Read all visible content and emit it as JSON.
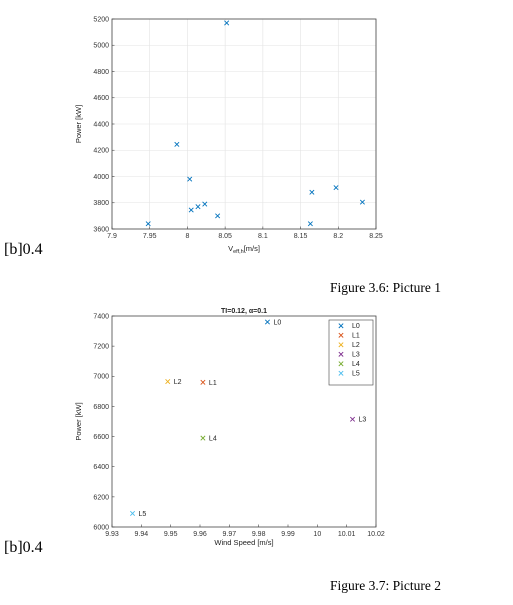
{
  "figure1": {
    "side_label": "[b]0.4",
    "caption": "Figure 3.6: Picture 1"
  },
  "figure2": {
    "side_label": "[b]0.4",
    "caption": "Figure 3.7: Picture 2"
  },
  "chart_data": [
    {
      "type": "scatter",
      "title": "",
      "xlabel_main": "V",
      "xlabel_sub": "eff,h",
      "xlabel_unit": "[m/s]",
      "ylabel": "Power [kW]",
      "xlim": [
        7.9,
        8.25
      ],
      "ylim": [
        3600,
        5200
      ],
      "xticks": [
        "7.9",
        "7.95",
        "8",
        "8.05",
        "8.1",
        "8.15",
        "8.2",
        "8.25"
      ],
      "yticks": [
        "3600",
        "3800",
        "4000",
        "4200",
        "4400",
        "4600",
        "4800",
        "5000",
        "5200"
      ],
      "grid": true,
      "marker_color": "#0072BD",
      "points": [
        {
          "x": 7.948,
          "y": 3640
        },
        {
          "x": 7.986,
          "y": 4245
        },
        {
          "x": 8.003,
          "y": 3980
        },
        {
          "x": 8.005,
          "y": 3745
        },
        {
          "x": 8.014,
          "y": 3770
        },
        {
          "x": 8.023,
          "y": 3790
        },
        {
          "x": 8.04,
          "y": 3700
        },
        {
          "x": 8.052,
          "y": 5170
        },
        {
          "x": 8.163,
          "y": 3640
        },
        {
          "x": 8.165,
          "y": 3880
        },
        {
          "x": 8.197,
          "y": 3915
        },
        {
          "x": 8.232,
          "y": 3805
        }
      ]
    },
    {
      "type": "scatter",
      "title": "TI=0.12, α=0.1",
      "xlabel": "Wind Speed [m/s]",
      "ylabel": "Power [kW]",
      "xlim": [
        9.93,
        10.02
      ],
      "ylim": [
        6000,
        7400
      ],
      "xticks": [
        "9.93",
        "9.94",
        "9.95",
        "9.96",
        "9.97",
        "9.98",
        "9.99",
        "10",
        "10.01",
        "10.02"
      ],
      "yticks": [
        "6000",
        "6200",
        "6400",
        "6600",
        "6800",
        "7000",
        "7200",
        "7400"
      ],
      "grid": false,
      "legend_position": "top-right",
      "series": [
        {
          "name": "L0",
          "color": "#0072BD",
          "x": 9.983,
          "y": 7360
        },
        {
          "name": "L1",
          "color": "#D95319",
          "x": 9.961,
          "y": 6960
        },
        {
          "name": "L2",
          "color": "#EDB120",
          "x": 9.949,
          "y": 6965
        },
        {
          "name": "L3",
          "color": "#7E2F8E",
          "x": 10.012,
          "y": 6715
        },
        {
          "name": "L4",
          "color": "#77AC30",
          "x": 9.961,
          "y": 6590
        },
        {
          "name": "L5",
          "color": "#4DBEEE",
          "x": 9.937,
          "y": 6090
        }
      ]
    }
  ]
}
